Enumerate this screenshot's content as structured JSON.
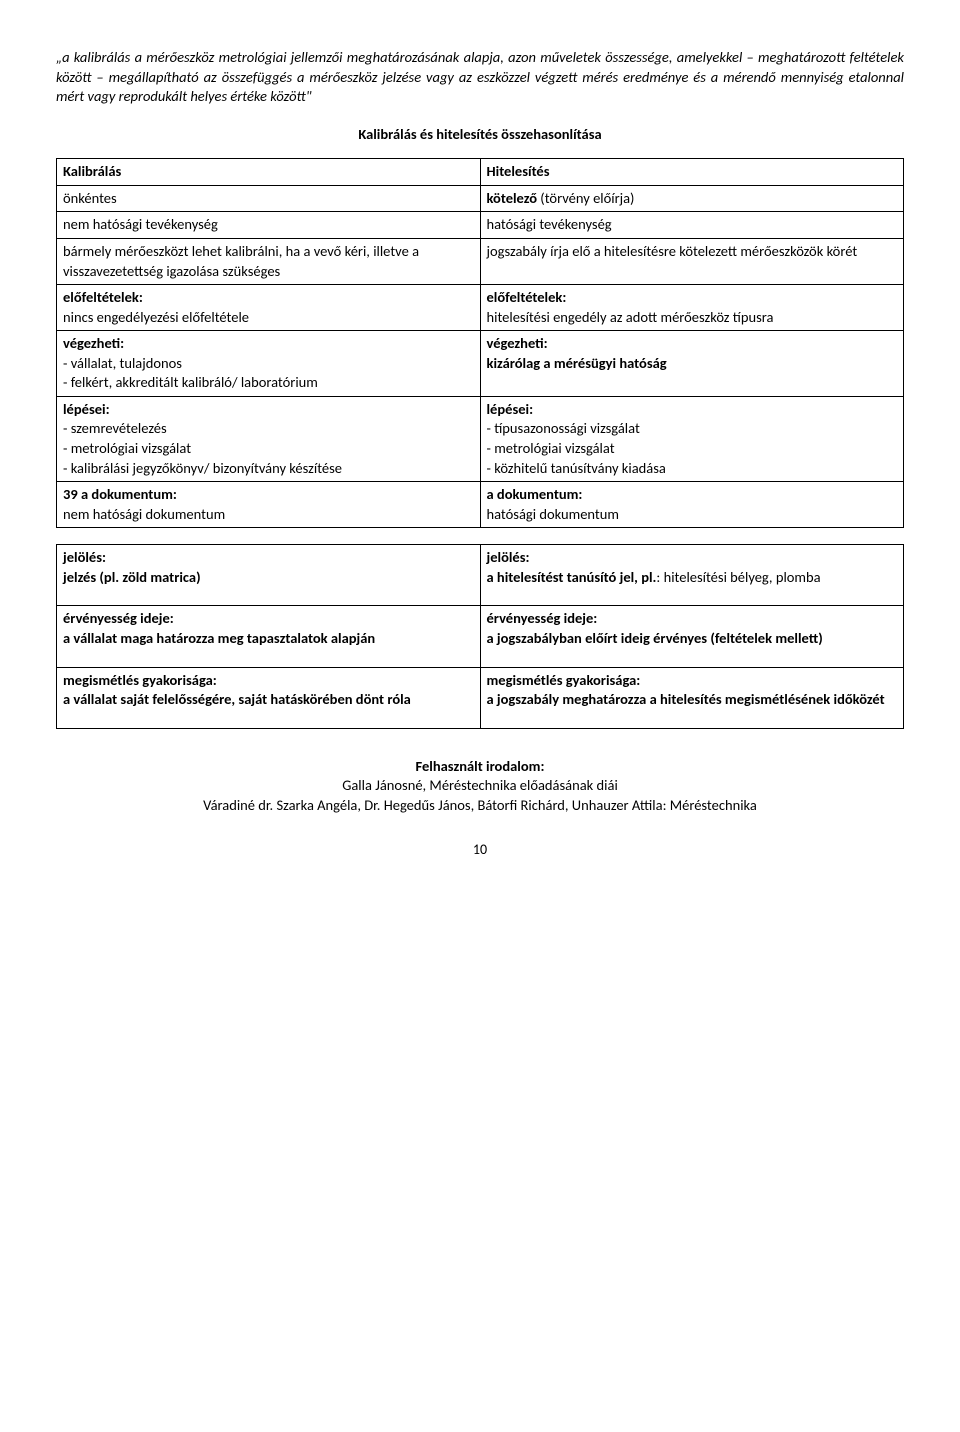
{
  "quote": "„a kalibrálás a mérőeszköz metrológiai jellemzői meghatározásának alapja, azon műveletek összessége, amelyekkel – meghatározott feltételek között – megállapítható az összefüggés a mérőeszköz jelzése vagy az eszközzel végzett mérés eredménye és a mérendő mennyiség etalonnal mért vagy reprodukált helyes értéke között\"",
  "section_title": "Kalibrálás és hitelesítés összehasonlítása",
  "comparison": {
    "rows": [
      {
        "l_bold": "Kalibrálás",
        "l_rest": "",
        "r_bold": "Hitelesítés",
        "r_rest": ""
      },
      {
        "l_bold": "",
        "l_rest": "önkéntes",
        "r_bold": "kötelező",
        "r_rest": " (törvény előírja)"
      },
      {
        "l_bold": "",
        "l_rest": "nem hatósági tevékenység",
        "r_bold": "",
        "r_rest": "hatósági tevékenység"
      },
      {
        "l_bold": "",
        "l_rest": "bármely mérőeszközt lehet kalibrálni, ha a vevő kéri, illetve a visszavezetettség igazolása szükséges",
        "r_bold": "",
        "r_rest": "jogszabály írja elő a hitelesítésre kötelezett mérőeszközök körét"
      }
    ],
    "precond": {
      "l_label": "előfeltételek:",
      "l_text": "nincs engedélyezési előfeltétele",
      "r_label": "előfeltételek:",
      "r_text": "hitelesítési engedély az adott mérőeszköz típusra"
    },
    "who": {
      "l_label": "végezheti:",
      "l_line1": "- vállalat, tulajdonos",
      "l_line2": "- felkért, akkreditált kalibráló/ laboratórium",
      "r_label": "végezheti:",
      "r_text": "kizárólag a mérésügyi hatóság"
    },
    "steps": {
      "l_label": "lépései:",
      "l_line1": "- szemrevételezés",
      "l_line2": "- metrológiai vizsgálat",
      "l_line3": "- kalibrálási jegyzőkönyv/ bizonyítvány készítése",
      "r_label": "lépései:",
      "r_line1": "- típusazonossági vizsgálat",
      "r_line2": "- metrológiai vizsgálat",
      "r_line3": "- közhitelű tanúsítvány kiadása"
    },
    "doc": {
      "l_label": "39 a dokumentum:",
      "l_text": "nem hatósági dokumentum",
      "r_label": "a dokumentum:",
      "r_text": "hatósági dokumentum"
    }
  },
  "lower": {
    "marking": {
      "l_label": "jelölés:",
      "l_text": "jelzés (pl. zöld matrica)",
      "r_label": "jelölés:",
      "r_text_bold": "a hitelesítést tanúsító jel, pl.",
      "r_text_rest": ": hitelesítési bélyeg, plomba"
    },
    "validity": {
      "l_label": "érvényesség ideje:",
      "l_text": "a vállalat maga határozza meg tapasztalatok alapján",
      "r_label": "érvényesség ideje:",
      "r_text_bold": "a jogszabályban előírt ideig érvényes",
      "r_text_rest": " (feltételek mellett)"
    },
    "repeat": {
      "l_label": "megismétlés gyakorisága:",
      "l_text": "a vállalat saját felelősségére, saját hatáskörében dönt róla",
      "r_label": "megismétlés gyakorisága:",
      "r_text": "a jogszabály meghatározza a hitelesítés megismétlésének időközét"
    }
  },
  "refs": {
    "title": "Felhasznált irodalom:",
    "line1": "Galla Jánosné, Méréstechnika előadásának diái",
    "line2": "Váradiné dr. Szarka Angéla, Dr. Hegedűs János, Bátorfi Richárd, Unhauzer Attila: Méréstechnika"
  },
  "pagenum": "10"
}
